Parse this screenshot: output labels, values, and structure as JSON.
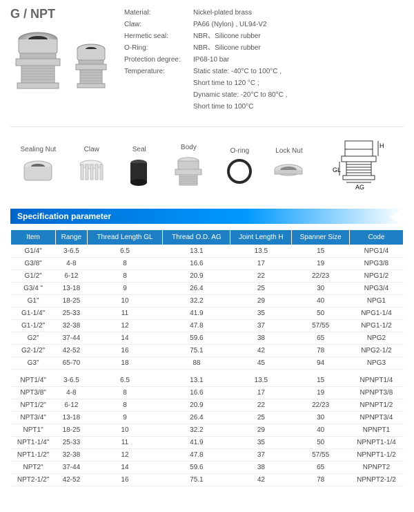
{
  "title": "G / NPT",
  "specs": [
    {
      "label": "Material:",
      "value": "Nickel-plated brass"
    },
    {
      "label": "Claw:",
      "value": "PA66 (Nylon) , UL94-V2"
    },
    {
      "label": "Hermetic seal:",
      "value": "NBR、Silicone rubber"
    },
    {
      "label": "O-Ring:",
      "value": "NBR、Silicone rubber"
    },
    {
      "label": "Protection degree:",
      "value": "IP68-10 bar"
    },
    {
      "label": "Temperature:",
      "value": "Static state: -40°C to 100°C ,"
    },
    {
      "label": "",
      "value": "Short time to  120 °C ;"
    },
    {
      "label": "",
      "value": "Dynamic state: -20°C to 80°C ,"
    },
    {
      "label": "",
      "value": "Short time to 100°C"
    }
  ],
  "parts": [
    "Sealing Nut",
    "Claw",
    "Seal",
    "Body",
    "O-ring",
    "Lock Nut"
  ],
  "diagram_labels": {
    "h": "H",
    "gl": "GL",
    "ag": "AG"
  },
  "section_title": "Specification parameter",
  "table": {
    "columns": [
      "Item",
      "Range",
      "Thread Length GL",
      "Thread O.D. AG",
      "Joint Length H",
      "Spanner Size",
      "Code"
    ],
    "rows": [
      [
        "G1/4\"",
        "3-6.5",
        "6.5",
        "13.1",
        "13.5",
        "15",
        "NPG1/4"
      ],
      [
        "G3/8\"",
        "4-8",
        "8",
        "16.6",
        "17",
        "19",
        "NPG3/8"
      ],
      [
        "G1/2\"",
        "6-12",
        "8",
        "20.9",
        "22",
        "22/23",
        "NPG1/2"
      ],
      [
        "G3/4 \"",
        "13-18",
        "9",
        "26.4",
        "25",
        "30",
        "NPG3/4"
      ],
      [
        "G1\"",
        "18-25",
        "10",
        "32.2",
        "29",
        "40",
        "NPG1"
      ],
      [
        "G1-1/4\"",
        "25-33",
        "11",
        "41.9",
        "35",
        "50",
        "NPG1-1/4"
      ],
      [
        "G1-1/2\"",
        "32-38",
        "12",
        "47.8",
        "37",
        "57/55",
        "NPG1-1/2"
      ],
      [
        "G2\"",
        "37-44",
        "14",
        "59.6",
        "38",
        "65",
        "NPG2"
      ],
      [
        "G2-1/2\"",
        "42-52",
        "16",
        "75.1",
        "42",
        "78",
        "NPG2-1/2"
      ],
      [
        "G3\"",
        "65-70",
        "18",
        "88",
        "45",
        "94",
        "NPG3"
      ]
    ],
    "rows2": [
      [
        "NPT1/4\"",
        "3-6.5",
        "6.5",
        "13.1",
        "13.5",
        "15",
        "NPNPT1/4"
      ],
      [
        "NPT3/8\"",
        "4-8",
        "8",
        "16.6",
        "17",
        "19",
        "NPNPT3/8"
      ],
      [
        "NPT1/2\"",
        "6-12",
        "8",
        "20.9",
        "22",
        "22/23",
        "NPNPT1/2"
      ],
      [
        "NPT3/4\"",
        "13-18",
        "9",
        "26.4",
        "25",
        "30",
        "NPNPT3/4"
      ],
      [
        "NPT1\"",
        "18-25",
        "10",
        "32.2",
        "29",
        "40",
        "NPNPT1"
      ],
      [
        "NPT1-1/4\"",
        "25-33",
        "11",
        "41.9",
        "35",
        "50",
        "NPNPT1-1/4"
      ],
      [
        "NPT1-1/2\"",
        "32-38",
        "12",
        "47.8",
        "37",
        "57/55",
        "NPNPT1-1/2"
      ],
      [
        "NPT2\"",
        "37-44",
        "14",
        "59.6",
        "38",
        "65",
        "NPNPT2"
      ],
      [
        "NPT2-1/2\"",
        "42-52",
        "16",
        "75.1",
        "42",
        "78",
        "NPNPT2-1/2"
      ]
    ]
  },
  "colors": {
    "header_bg": "#1e7fc4",
    "metal": "#c8c8c8",
    "metal_dark": "#999",
    "seal": "#2a2a2a"
  }
}
